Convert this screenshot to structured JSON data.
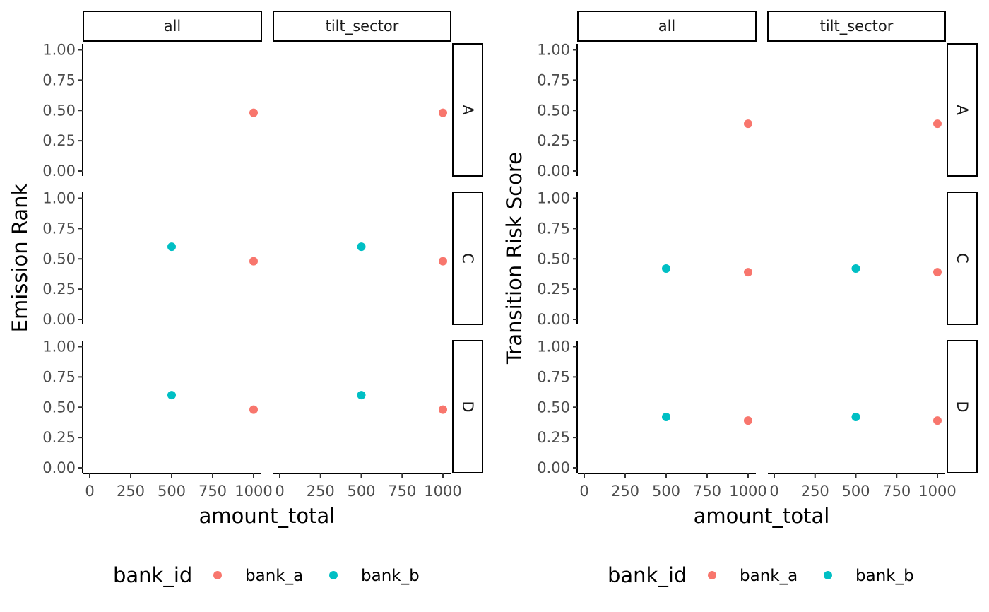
{
  "chart_data": [
    {
      "type": "scatter",
      "ylabel": "Emission Rank",
      "xlabel": "amount_total",
      "facet_columns": [
        "all",
        "tilt_sector"
      ],
      "facet_rows": [
        "A",
        "C",
        "D"
      ],
      "xlim": [
        0,
        1000
      ],
      "ylim": [
        0,
        1
      ],
      "x_ticks": [
        "0",
        "250",
        "500",
        "750",
        "1000"
      ],
      "y_ticks": [
        "0.00",
        "0.25",
        "0.50",
        "0.75",
        "1.00"
      ],
      "legend_title": "bank_id",
      "legend_position": "bottom",
      "grid": false,
      "series": [
        {
          "name": "bank_a",
          "color": "#F8766D",
          "points": [
            {
              "col": "all",
              "row": "A",
              "x": 1000,
              "y": 0.48
            },
            {
              "col": "tilt_sector",
              "row": "A",
              "x": 1000,
              "y": 0.48
            },
            {
              "col": "all",
              "row": "C",
              "x": 1000,
              "y": 0.48
            },
            {
              "col": "tilt_sector",
              "row": "C",
              "x": 1000,
              "y": 0.48
            },
            {
              "col": "all",
              "row": "D",
              "x": 1000,
              "y": 0.48
            },
            {
              "col": "tilt_sector",
              "row": "D",
              "x": 1000,
              "y": 0.48
            }
          ]
        },
        {
          "name": "bank_b",
          "color": "#00BFC4",
          "points": [
            {
              "col": "all",
              "row": "C",
              "x": 500,
              "y": 0.6
            },
            {
              "col": "tilt_sector",
              "row": "C",
              "x": 500,
              "y": 0.6
            },
            {
              "col": "all",
              "row": "D",
              "x": 500,
              "y": 0.6
            },
            {
              "col": "tilt_sector",
              "row": "D",
              "x": 500,
              "y": 0.6
            }
          ]
        }
      ]
    },
    {
      "type": "scatter",
      "ylabel": "Transition Risk Score",
      "xlabel": "amount_total",
      "facet_columns": [
        "all",
        "tilt_sector"
      ],
      "facet_rows": [
        "A",
        "C",
        "D"
      ],
      "xlim": [
        0,
        1000
      ],
      "ylim": [
        0,
        1
      ],
      "x_ticks": [
        "0",
        "250",
        "500",
        "750",
        "1000"
      ],
      "y_ticks": [
        "0.00",
        "0.25",
        "0.50",
        "0.75",
        "1.00"
      ],
      "legend_title": "bank_id",
      "legend_position": "bottom",
      "grid": false,
      "series": [
        {
          "name": "bank_a",
          "color": "#F8766D",
          "points": [
            {
              "col": "all",
              "row": "A",
              "x": 1000,
              "y": 0.39
            },
            {
              "col": "tilt_sector",
              "row": "A",
              "x": 1000,
              "y": 0.39
            },
            {
              "col": "all",
              "row": "C",
              "x": 1000,
              "y": 0.39
            },
            {
              "col": "tilt_sector",
              "row": "C",
              "x": 1000,
              "y": 0.39
            },
            {
              "col": "all",
              "row": "D",
              "x": 1000,
              "y": 0.39
            },
            {
              "col": "tilt_sector",
              "row": "D",
              "x": 1000,
              "y": 0.39
            }
          ]
        },
        {
          "name": "bank_b",
          "color": "#00BFC4",
          "points": [
            {
              "col": "all",
              "row": "C",
              "x": 500,
              "y": 0.42
            },
            {
              "col": "tilt_sector",
              "row": "C",
              "x": 500,
              "y": 0.42
            },
            {
              "col": "all",
              "row": "D",
              "x": 500,
              "y": 0.42
            },
            {
              "col": "tilt_sector",
              "row": "D",
              "x": 500,
              "y": 0.42
            }
          ]
        }
      ]
    }
  ]
}
